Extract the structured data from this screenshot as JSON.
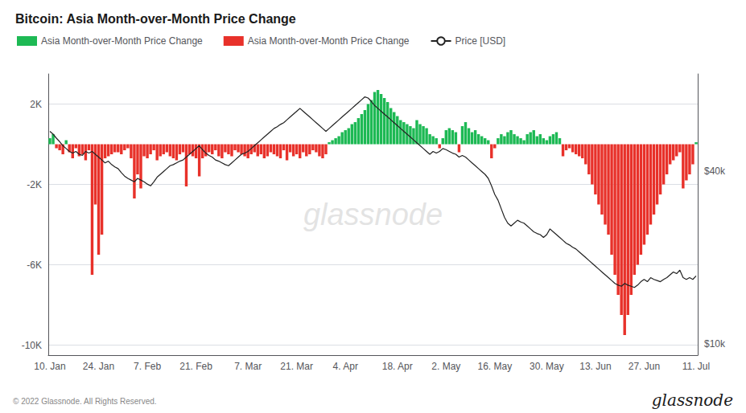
{
  "chart_data": {
    "type": "bar",
    "title": "Bitcoin: Asia Month-over-Month Price Change",
    "categories": [
      "10. Jan",
      null,
      null,
      null,
      null,
      null,
      null,
      null,
      null,
      null,
      null,
      null,
      null,
      null,
      null,
      "24. Jan",
      null,
      null,
      null,
      null,
      null,
      null,
      null,
      null,
      null,
      null,
      null,
      null,
      null,
      null,
      "7. Feb",
      null,
      null,
      null,
      null,
      null,
      null,
      null,
      null,
      null,
      null,
      null,
      null,
      null,
      null,
      "21. Feb",
      null,
      null,
      null,
      null,
      null,
      null,
      null,
      null,
      null,
      null,
      null,
      null,
      null,
      null,
      null,
      "7. Mar",
      null,
      null,
      null,
      null,
      null,
      null,
      null,
      null,
      null,
      null,
      null,
      null,
      null,
      null,
      "21. Mar",
      null,
      null,
      null,
      null,
      null,
      null,
      null,
      null,
      null,
      null,
      null,
      null,
      null,
      null,
      "4. Apr",
      null,
      null,
      null,
      null,
      null,
      null,
      null,
      null,
      null,
      null,
      null,
      null,
      null,
      null,
      null,
      "18. Apr",
      null,
      null,
      null,
      null,
      null,
      null,
      null,
      null,
      null,
      null,
      null,
      null,
      null,
      null,
      "2. May",
      null,
      null,
      null,
      null,
      null,
      null,
      null,
      null,
      null,
      null,
      null,
      null,
      null,
      null,
      "16. May",
      null,
      null,
      null,
      null,
      null,
      null,
      null,
      null,
      null,
      null,
      null,
      null,
      null,
      null,
      null,
      "30. May",
      null,
      null,
      null,
      null,
      null,
      null,
      null,
      null,
      null,
      null,
      null,
      null,
      null,
      null,
      "13. Jun",
      null,
      null,
      null,
      null,
      null,
      null,
      null,
      null,
      null,
      null,
      null,
      null,
      null,
      null,
      "27. Jun",
      null,
      null,
      null,
      null,
      null,
      null,
      null,
      null,
      null,
      null,
      null,
      null,
      null,
      null,
      null,
      "11. Jul"
    ],
    "series": [
      {
        "name": "Asia Month-over-Month Price Change",
        "type": "bar",
        "colors": [
          "#1db954",
          "#1db954",
          "#e8312a",
          "#e8312a",
          "#e8312a",
          "#1db954",
          "#e8312a",
          "#e8312a",
          "#e8312a",
          "#e8312a",
          "#e8312a",
          "#e8312a",
          "#e8312a",
          "#e8312a",
          "#e8312a",
          "#e8312a",
          "#e8312a",
          "#e8312a",
          "#e8312a",
          "#e8312a",
          "#e8312a",
          "#e8312a",
          "#e8312a",
          "#e8312a",
          "#e8312a",
          "#e8312a",
          "#e8312a",
          "#e8312a",
          "#e8312a",
          "#e8312a",
          "#e8312a",
          "#e8312a",
          "#e8312a",
          "#e8312a",
          "#e8312a",
          "#e8312a",
          "#e8312a",
          "#e8312a",
          "#e8312a",
          "#e8312a",
          "#e8312a",
          "#e8312a",
          "#e8312a",
          "#e8312a",
          "#e8312a",
          "#e8312a",
          "#e8312a",
          "#e8312a",
          "#e8312a",
          "#e8312a",
          "#e8312a",
          "#e8312a",
          "#e8312a",
          "#e8312a",
          "#e8312a",
          "#e8312a",
          "#e8312a",
          "#e8312a",
          "#e8312a",
          "#e8312a",
          "#e8312a",
          "#e8312a",
          "#e8312a",
          "#e8312a",
          "#e8312a",
          "#e8312a",
          "#e8312a",
          "#e8312a",
          "#e8312a",
          "#e8312a",
          "#e8312a",
          "#e8312a",
          "#e8312a",
          "#e8312a",
          "#e8312a",
          "#e8312a",
          "#e8312a",
          "#e8312a",
          "#e8312a",
          "#e8312a",
          "#e8312a",
          "#e8312a",
          "#e8312a",
          "#e8312a",
          "#e8312a",
          "#e8312a",
          "#1db954",
          "#1db954",
          "#1db954",
          "#1db954",
          "#1db954",
          "#1db954",
          "#1db954",
          "#1db954",
          "#1db954",
          "#1db954",
          "#1db954",
          "#1db954",
          "#1db954",
          "#1db954",
          "#1db954",
          "#1db954",
          "#1db954",
          "#1db954",
          "#1db954",
          "#1db954",
          "#1db954",
          "#1db954",
          "#1db954",
          "#1db954",
          "#1db954",
          "#1db954",
          "#1db954",
          "#1db954",
          "#1db954",
          "#1db954",
          "#1db954",
          "#1db954",
          "#1db954",
          "#1db954",
          "#e8312a",
          "#1db954",
          "#1db954",
          "#1db954",
          "#1db954",
          "#1db954",
          "#e8312a",
          "#1db954",
          "#1db954",
          "#1db954",
          "#1db954",
          "#1db954",
          "#1db954",
          "#1db954",
          "#1db954",
          "#1db954",
          "#e8312a",
          "#e8312a",
          "#1db954",
          "#1db954",
          "#1db954",
          "#1db954",
          "#1db954",
          "#1db954",
          "#1db954",
          "#1db954",
          "#1db954",
          "#1db954",
          "#1db954",
          "#1db954",
          "#1db954",
          "#1db954",
          "#1db954",
          "#1db954",
          "#1db954",
          "#1db954",
          "#1db954",
          "#1db954",
          "#e8312a",
          "#e8312a",
          "#e8312a",
          "#e8312a",
          "#e8312a",
          "#e8312a",
          "#e8312a",
          "#e8312a",
          "#e8312a",
          "#e8312a",
          "#e8312a",
          "#e8312a",
          "#e8312a",
          "#e8312a",
          "#e8312a",
          "#e8312a",
          "#e8312a",
          "#e8312a",
          "#e8312a",
          "#e8312a",
          "#e8312a",
          "#e8312a",
          "#e8312a",
          "#e8312a",
          "#e8312a",
          "#e8312a",
          "#e8312a",
          "#e8312a",
          "#e8312a",
          "#e8312a",
          "#e8312a",
          "#e8312a",
          "#e8312a",
          "#e8312a",
          "#e8312a",
          "#e8312a",
          "#e8312a",
          "#e8312a",
          "#e8312a",
          "#e8312a",
          "#e8312a",
          "#1db954"
        ],
        "values": [
          300,
          500,
          -200,
          -300,
          -500,
          200,
          -400,
          -700,
          -200,
          -600,
          -500,
          -800,
          -300,
          -6500,
          -3000,
          -5500,
          -4500,
          -700,
          -600,
          -500,
          -400,
          -400,
          -500,
          -300,
          -200,
          -700,
          -2700,
          -1500,
          -2200,
          -600,
          -700,
          -500,
          -300,
          -800,
          -600,
          -500,
          -400,
          -600,
          -700,
          -800,
          -500,
          -400,
          -2100,
          -500,
          -600,
          -700,
          -1600,
          -700,
          -600,
          -400,
          -500,
          -300,
          -600,
          -700,
          -400,
          -500,
          -600,
          -300,
          -400,
          -500,
          -600,
          -700,
          -500,
          -400,
          -600,
          -500,
          -700,
          -600,
          -400,
          -500,
          -600,
          -700,
          -300,
          -800,
          -400,
          -600,
          -500,
          -700,
          -400,
          -600,
          -500,
          -300,
          -400,
          -600,
          -700,
          -500,
          100,
          200,
          300,
          400,
          600,
          700,
          800,
          1000,
          1100,
          1300,
          1500,
          1700,
          2000,
          2200,
          2600,
          2700,
          2500,
          2300,
          2100,
          1800,
          1600,
          1400,
          1200,
          1100,
          1000,
          900,
          800,
          1200,
          1000,
          900,
          800,
          500,
          400,
          300,
          -200,
          300,
          700,
          800,
          700,
          600,
          -400,
          900,
          1100,
          800,
          600,
          700,
          500,
          400,
          300,
          200,
          -700,
          -200,
          300,
          500,
          400,
          600,
          700,
          500,
          400,
          300,
          200,
          500,
          600,
          700,
          400,
          500,
          300,
          200,
          400,
          500,
          600,
          300,
          -600,
          -300,
          -200,
          -400,
          -500,
          -600,
          -700,
          -1000,
          -1500,
          -2000,
          -2500,
          -3000,
          -3500,
          -4000,
          -4500,
          -5500,
          -6500,
          -7500,
          -8500,
          -9500,
          -8500,
          -7500,
          -6500,
          -6000,
          -5500,
          -5000,
          -4500,
          -4000,
          -3500,
          -3000,
          -2500,
          -2000,
          -1500,
          -1000,
          -800,
          -600,
          -400,
          -2200,
          -1800,
          -1500,
          -1000,
          100
        ]
      },
      {
        "name": "Price [USD]",
        "type": "line",
        "color": "#222222",
        "axis": "y2",
        "values": [
          47000,
          46500,
          45800,
          45200,
          44500,
          44000,
          43500,
          43200,
          43500,
          43000,
          42800,
          43500,
          43200,
          43500,
          43000,
          42500,
          42000,
          41500,
          41800,
          41200,
          40800,
          40500,
          39800,
          39200,
          38800,
          38500,
          38200,
          38800,
          38500,
          38200,
          37800,
          37500,
          38200,
          39000,
          39500,
          40000,
          40500,
          41000,
          41200,
          41500,
          41800,
          42000,
          42500,
          43000,
          43500,
          44000,
          44500,
          43800,
          43200,
          42800,
          42500,
          42000,
          41800,
          41500,
          41200,
          41000,
          41500,
          42000,
          42500,
          43000,
          43200,
          43500,
          44000,
          44500,
          45000,
          45500,
          46000,
          46500,
          47000,
          47500,
          47800,
          48200,
          48500,
          49000,
          49500,
          50000,
          50500,
          51000,
          50500,
          50000,
          49500,
          49000,
          48500,
          48000,
          47500,
          47000,
          47500,
          48000,
          48500,
          49000,
          49500,
          50000,
          50500,
          51000,
          51500,
          52000,
          52500,
          53000,
          52800,
          52200,
          51500,
          51000,
          50500,
          50000,
          49500,
          49000,
          48500,
          48000,
          47500,
          47000,
          46500,
          46000,
          45500,
          45000,
          44500,
          44000,
          43500,
          43000,
          43500,
          43200,
          43500,
          44000,
          43800,
          43500,
          43200,
          43000,
          42500,
          42800,
          42500,
          42000,
          41500,
          41000,
          40500,
          40000,
          39500,
          38800,
          37500,
          36000,
          35000,
          33500,
          32000,
          31000,
          30500,
          31000,
          31500,
          31200,
          31000,
          30500,
          30000,
          29500,
          29200,
          29000,
          28500,
          29000,
          30000,
          29500,
          29000,
          28500,
          28000,
          27500,
          27200,
          26800,
          26500,
          26000,
          25500,
          25000,
          24500,
          24000,
          23500,
          23000,
          22500,
          22000,
          21500,
          21000,
          20500,
          20200,
          20000,
          20500,
          20200,
          20000,
          19800,
          20200,
          20800,
          21200,
          20800,
          21500,
          21200,
          21000,
          20800,
          21200,
          21500,
          22000,
          22500,
          22200,
          22800,
          21500,
          21200,
          21500,
          21200,
          21800
        ]
      }
    ],
    "ylim": [
      -10500,
      3500
    ],
    "yticks": [
      {
        "value": -10000,
        "label": "-10K"
      },
      {
        "value": -6000,
        "label": "-6K"
      },
      {
        "value": -2000,
        "label": "-2K"
      },
      {
        "value": 2000,
        "label": "2K"
      }
    ],
    "y2lim": [
      8000,
      57000
    ],
    "y2ticks": [
      {
        "value": 10000,
        "label": "$10k"
      },
      {
        "value": 40000,
        "label": "$40k"
      }
    ],
    "grid": true,
    "legend": "upper left",
    "annotations": [
      "glassnode",
      "© 2022 Glassnode. All Rights Reserved.",
      "glassnode"
    ]
  }
}
